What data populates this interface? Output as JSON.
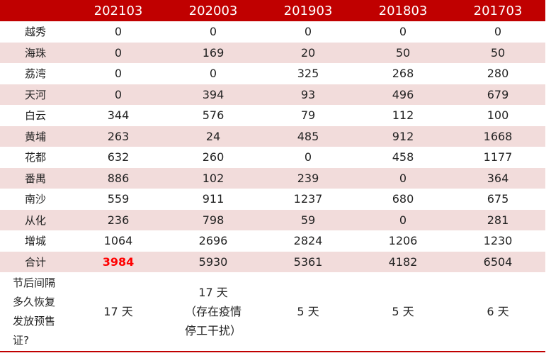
{
  "table": {
    "columns": [
      "202103",
      "202003",
      "201903",
      "201803",
      "201703"
    ],
    "rows": [
      {
        "label": "越秀",
        "values": [
          0,
          0,
          0,
          0,
          0
        ]
      },
      {
        "label": "海珠",
        "values": [
          0,
          169,
          20,
          50,
          50
        ]
      },
      {
        "label": "荔湾",
        "values": [
          0,
          0,
          325,
          268,
          280
        ]
      },
      {
        "label": "天河",
        "values": [
          0,
          394,
          93,
          496,
          679
        ]
      },
      {
        "label": "白云",
        "values": [
          344,
          576,
          79,
          112,
          100
        ]
      },
      {
        "label": "黄埔",
        "values": [
          263,
          24,
          485,
          912,
          1668
        ]
      },
      {
        "label": "花都",
        "values": [
          632,
          260,
          0,
          458,
          1177
        ]
      },
      {
        "label": "番禺",
        "values": [
          886,
          102,
          239,
          0,
          364
        ]
      },
      {
        "label": "南沙",
        "values": [
          559,
          911,
          1237,
          680,
          675
        ]
      },
      {
        "label": "从化",
        "values": [
          236,
          798,
          59,
          0,
          281
        ]
      },
      {
        "label": "增城",
        "values": [
          1064,
          2696,
          2824,
          1206,
          1230
        ]
      },
      {
        "label": "合计",
        "values": [
          3984,
          5930,
          5361,
          4182,
          6504
        ]
      }
    ],
    "footer": {
      "label": [
        "节后间隔",
        "多久恢复",
        "发放预售",
        "证?"
      ],
      "values": [
        [
          "17 天"
        ],
        [
          "17 天",
          "（存在疫情",
          "停工干扰）"
        ],
        [
          "5 天"
        ],
        [
          "5 天"
        ],
        [
          "6 天"
        ]
      ]
    }
  }
}
